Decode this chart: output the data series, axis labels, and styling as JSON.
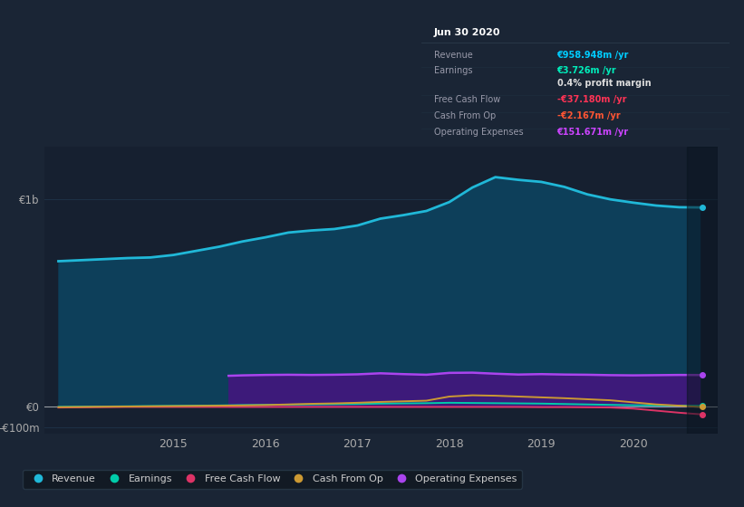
{
  "bg_color": "#1a2535",
  "chart_bg": "#162030",
  "grid_color": "#1e3348",
  "ylim": [
    -130,
    1250
  ],
  "yticks": [
    -100,
    0,
    1000
  ],
  "ytick_labels": [
    "-€100m",
    "€0",
    "€1b"
  ],
  "xmin": 2013.6,
  "xmax": 2020.92,
  "xticks": [
    2015,
    2016,
    2017,
    2018,
    2019,
    2020
  ],
  "revenue_x": [
    2013.75,
    2014.0,
    2014.25,
    2014.5,
    2014.75,
    2015.0,
    2015.25,
    2015.5,
    2015.75,
    2016.0,
    2016.25,
    2016.5,
    2016.75,
    2017.0,
    2017.25,
    2017.5,
    2017.75,
    2018.0,
    2018.25,
    2018.5,
    2018.75,
    2019.0,
    2019.25,
    2019.5,
    2019.75,
    2020.0,
    2020.25,
    2020.5,
    2020.72
  ],
  "revenue_y": [
    700,
    705,
    710,
    715,
    718,
    730,
    750,
    770,
    795,
    815,
    838,
    848,
    855,
    872,
    905,
    922,
    942,
    985,
    1055,
    1105,
    1092,
    1082,
    1058,
    1022,
    998,
    982,
    968,
    960,
    959
  ],
  "opex_x": [
    2015.6,
    2015.75,
    2016.0,
    2016.25,
    2016.5,
    2016.75,
    2017.0,
    2017.25,
    2017.5,
    2017.75,
    2018.0,
    2018.25,
    2018.5,
    2018.75,
    2019.0,
    2019.25,
    2019.5,
    2019.75,
    2020.0,
    2020.25,
    2020.5,
    2020.72
  ],
  "opex_y": [
    148,
    150,
    152,
    153,
    152,
    153,
    155,
    160,
    156,
    153,
    162,
    163,
    158,
    154,
    156,
    154,
    153,
    151,
    150,
    151,
    152,
    151.7
  ],
  "earnings_x": [
    2013.75,
    2014.0,
    2014.25,
    2014.5,
    2014.75,
    2015.0,
    2015.25,
    2015.5,
    2015.75,
    2016.0,
    2016.25,
    2016.5,
    2016.75,
    2017.0,
    2017.25,
    2017.5,
    2017.75,
    2018.0,
    2018.25,
    2018.5,
    2018.75,
    2019.0,
    2019.25,
    2019.5,
    2019.75,
    2020.0,
    2020.25,
    2020.5,
    2020.72
  ],
  "earnings_y": [
    -2,
    -1,
    0,
    1,
    2,
    3,
    4,
    5,
    7,
    8,
    9,
    10,
    11,
    12,
    14,
    15,
    16,
    18,
    17,
    16,
    15,
    14,
    12,
    10,
    8,
    6,
    5,
    4,
    3.7
  ],
  "fcf_x": [
    2013.75,
    2014.0,
    2014.25,
    2014.5,
    2014.75,
    2015.0,
    2015.25,
    2015.5,
    2015.75,
    2016.0,
    2016.25,
    2016.5,
    2016.75,
    2017.0,
    2017.25,
    2017.5,
    2017.75,
    2018.0,
    2018.25,
    2018.5,
    2018.75,
    2019.0,
    2019.25,
    2019.5,
    2019.75,
    2020.0,
    2020.25,
    2020.5,
    2020.72
  ],
  "fcf_y": [
    -5,
    -4,
    -3,
    -2,
    -2,
    -2,
    -2,
    -2,
    -2,
    -2,
    -2,
    -2,
    -2,
    -2,
    -2,
    -2,
    -2,
    -2,
    -2,
    -2,
    -2,
    -3,
    -3,
    -4,
    -5,
    -10,
    -20,
    -30,
    -37.2
  ],
  "cfo_x": [
    2013.75,
    2014.0,
    2014.25,
    2014.5,
    2014.75,
    2015.0,
    2015.25,
    2015.5,
    2015.75,
    2016.0,
    2016.25,
    2016.5,
    2016.75,
    2017.0,
    2017.25,
    2017.5,
    2017.75,
    2018.0,
    2018.25,
    2018.5,
    2018.75,
    2019.0,
    2019.25,
    2019.5,
    2019.75,
    2020.0,
    2020.25,
    2020.5,
    2020.72
  ],
  "cfo_y": [
    -3,
    -2,
    -1,
    0,
    1,
    2,
    3,
    4,
    5,
    7,
    10,
    13,
    15,
    18,
    22,
    25,
    28,
    48,
    54,
    52,
    48,
    44,
    40,
    35,
    30,
    20,
    10,
    4,
    -2.2
  ],
  "revenue_color": "#20b8d8",
  "revenue_fill": "#0d3f5a",
  "opex_color": "#aa44ee",
  "opex_fill": "#3d1a7a",
  "earnings_color": "#00ccaa",
  "fcf_color": "#dd3366",
  "cfo_color": "#cc9933",
  "tooltip_bg": "#0a0e14",
  "tooltip_border": "#2a3a4a",
  "tooltip_title": "Jun 30 2020",
  "tooltip_rows": [
    {
      "label": "Revenue",
      "value": "€958.948m /yr",
      "value_color": "#00ccff",
      "sep_after": true
    },
    {
      "label": "Earnings",
      "value": "€3.726m /yr",
      "value_color": "#00eebb",
      "sep_after": false
    },
    {
      "label": "",
      "value": "0.4% profit margin",
      "value_color": "#dddddd",
      "sep_after": true
    },
    {
      "label": "Free Cash Flow",
      "value": "-€37.180m /yr",
      "value_color": "#ff3355",
      "sep_after": true
    },
    {
      "label": "Cash From Op",
      "value": "-€2.167m /yr",
      "value_color": "#ff5533",
      "sep_after": true
    },
    {
      "label": "Operating Expenses",
      "value": "€151.671m /yr",
      "value_color": "#cc44ff",
      "sep_after": false
    }
  ],
  "legend_items": [
    {
      "label": "Revenue",
      "color": "#20b8d8"
    },
    {
      "label": "Earnings",
      "color": "#00ccaa"
    },
    {
      "label": "Free Cash Flow",
      "color": "#dd3366"
    },
    {
      "label": "Cash From Op",
      "color": "#cc9933"
    },
    {
      "label": "Operating Expenses",
      "color": "#aa44ee"
    }
  ]
}
